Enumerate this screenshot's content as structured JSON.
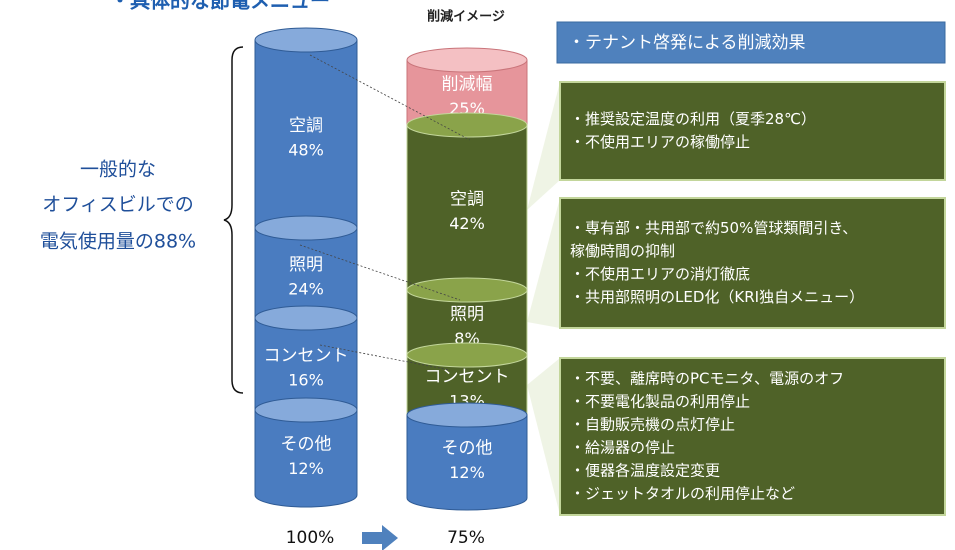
{
  "title": "・具体的な節電メニュー",
  "left_label": [
    "一般的な",
    "オフィスビルでの",
    "電気使用量の88%"
  ],
  "reduction_caption": "削減イメージ",
  "before": {
    "segments": [
      {
        "name": "空調",
        "value": "48%"
      },
      {
        "name": "照明",
        "value": "24%"
      },
      {
        "name": "コンセント",
        "value": "16%"
      },
      {
        "name": "その他",
        "value": "12%"
      }
    ]
  },
  "after": {
    "segments": [
      {
        "name": "削減幅",
        "value": "25%"
      },
      {
        "name": "空調",
        "value": "42%"
      },
      {
        "name": "照明",
        "value": "8%"
      },
      {
        "name": "コンセント",
        "value": "13%"
      },
      {
        "name": "その他",
        "value": "12%"
      }
    ]
  },
  "total_before": "100%",
  "total_after": "75%",
  "tenant_header": "・テナント啓発による削減効果",
  "measures": [
    [
      "・推奨設定温度の利用（夏季28℃）",
      "・不使用エリアの稼働停止"
    ],
    [
      "・専有部・共用部で約50%管球類間引き、",
      "稼働時間の抑制",
      "・不使用エリアの消灯徹底",
      "・共用部照明のLED化（KRI独自メニュー）"
    ],
    [
      "・不要、離席時のPCモニタ、電源のオフ",
      "・不要電化製品の利用停止",
      "・自動販売機の点灯停止",
      "・給湯器の停止",
      "・便器各温度設定変更",
      "・ジェットタオルの利用停止など"
    ]
  ]
}
